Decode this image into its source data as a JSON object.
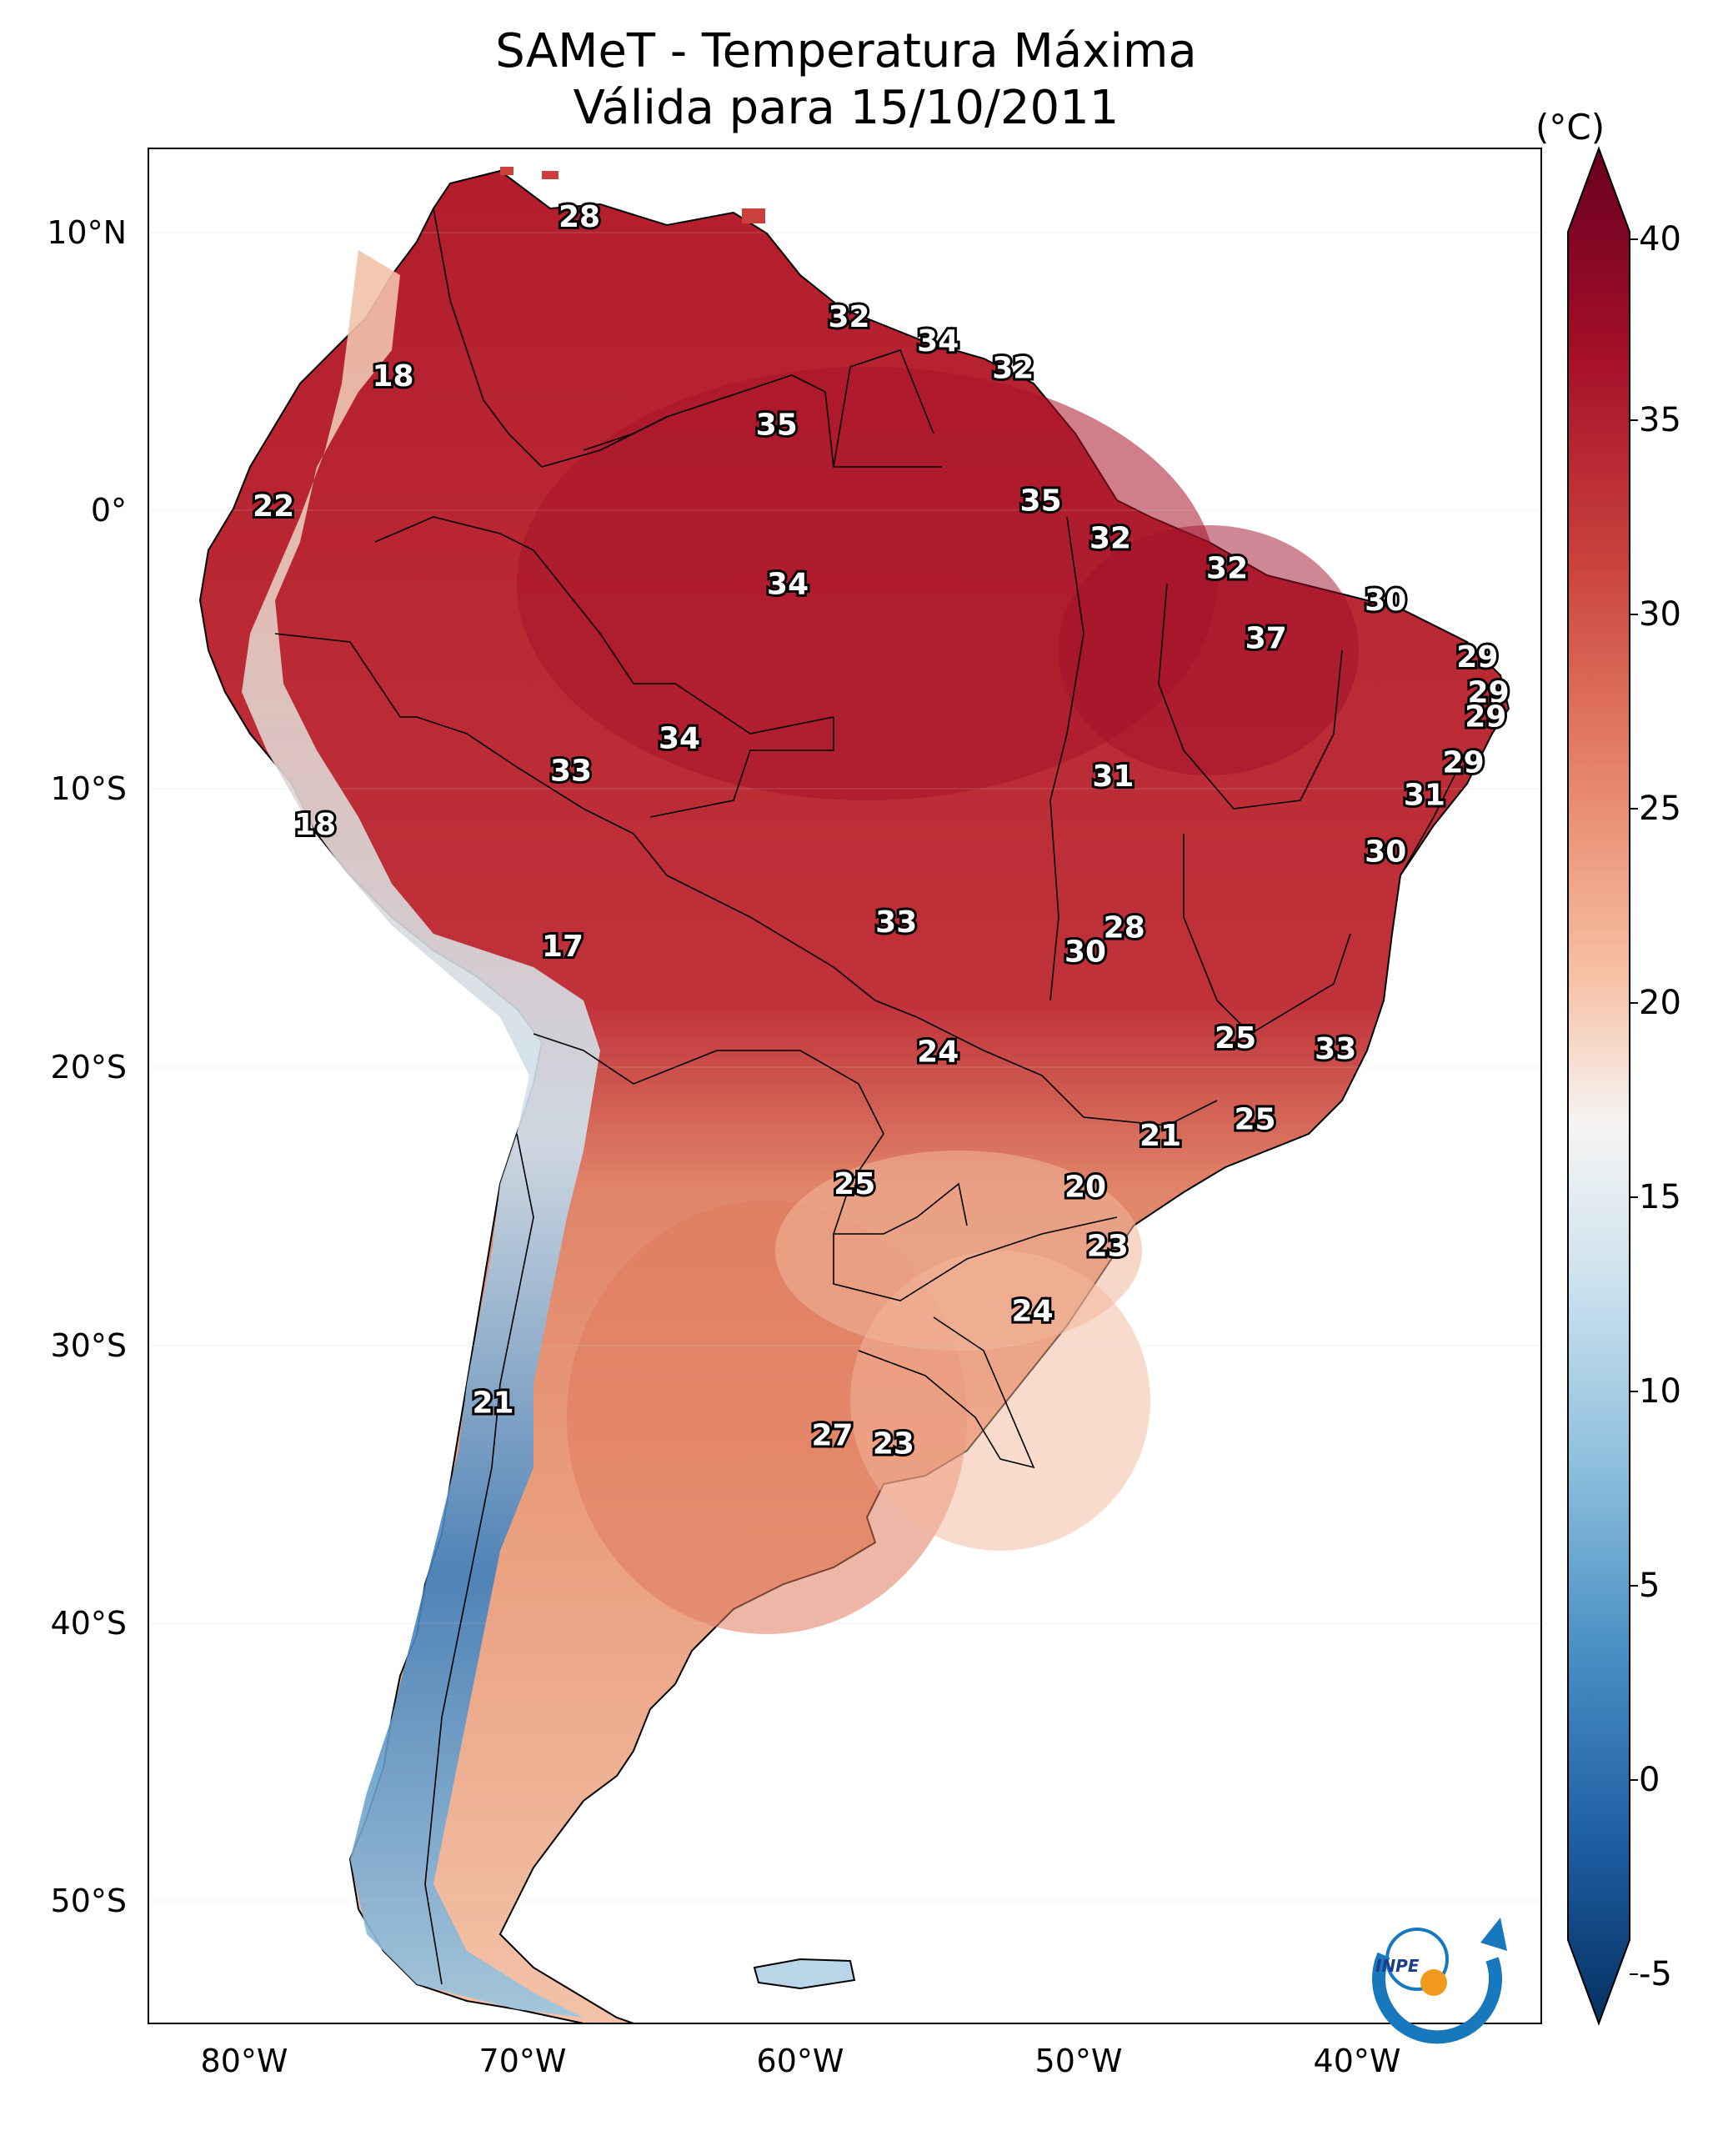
{
  "title": {
    "line1": "SAMeT - Temperatura Máxima",
    "line2": "Válida para 15/10/2011"
  },
  "axes": {
    "lat_ticks": [
      "10°N",
      "0°",
      "10°S",
      "20°S",
      "30°S",
      "40°S",
      "50°S"
    ],
    "lon_ticks": [
      "80°W",
      "70°W",
      "60°W",
      "50°W",
      "40°W"
    ]
  },
  "colorbar": {
    "unit": "(°C)",
    "ticks": [
      "40",
      "35",
      "30",
      "25",
      "20",
      "15",
      "10",
      "5",
      "0",
      "-5"
    ],
    "min": -5,
    "max": 40,
    "colors": [
      "#083a78",
      "#2c6fb0",
      "#6aa8d0",
      "#b9d9ea",
      "#f5f5f5",
      "#f7c3a6",
      "#e5815f",
      "#c5363a",
      "#8e0c1f",
      "#67001f"
    ]
  },
  "station_labels": [
    {
      "text": "28",
      "lat": 10.5,
      "lon": -67.5
    },
    {
      "text": "32",
      "lat": 6.8,
      "lon": -57.8
    },
    {
      "text": "34",
      "lat": 5.9,
      "lon": -54.6
    },
    {
      "text": "32",
      "lat": 4.9,
      "lon": -51.9
    },
    {
      "text": "18",
      "lat": 4.6,
      "lon": -74.2
    },
    {
      "text": "35",
      "lat": 2.8,
      "lon": -60.4
    },
    {
      "text": "22",
      "lat": -0.2,
      "lon": -78.5
    },
    {
      "text": "35",
      "lat": 0.0,
      "lon": -50.9
    },
    {
      "text": "32",
      "lat": -1.4,
      "lon": -48.4
    },
    {
      "text": "32",
      "lat": -2.5,
      "lon": -44.2
    },
    {
      "text": "34",
      "lat": -3.1,
      "lon": -60.0
    },
    {
      "text": "30",
      "lat": -3.7,
      "lon": -38.5
    },
    {
      "text": "37",
      "lat": -5.1,
      "lon": -42.8
    },
    {
      "text": "29",
      "lat": -5.8,
      "lon": -35.2
    },
    {
      "text": "29",
      "lat": -7.1,
      "lon": -34.8
    },
    {
      "text": "29",
      "lat": -8.0,
      "lon": -34.9
    },
    {
      "text": "34",
      "lat": -8.8,
      "lon": -63.9
    },
    {
      "text": "29",
      "lat": -9.7,
      "lon": -35.7
    },
    {
      "text": "33",
      "lat": -10.0,
      "lon": -67.8
    },
    {
      "text": "31",
      "lat": -10.2,
      "lon": -48.3
    },
    {
      "text": "31",
      "lat": -10.9,
      "lon": -37.1
    },
    {
      "text": "18",
      "lat": -12.0,
      "lon": -77.0
    },
    {
      "text": "30",
      "lat": -13.0,
      "lon": -38.5
    },
    {
      "text": "33",
      "lat": -15.6,
      "lon": -56.1
    },
    {
      "text": "28",
      "lat": -15.8,
      "lon": -47.9
    },
    {
      "text": "30",
      "lat": -16.7,
      "lon": -49.3
    },
    {
      "text": "17",
      "lat": -16.5,
      "lon": -68.1
    },
    {
      "text": "25",
      "lat": -19.9,
      "lon": -43.9
    },
    {
      "text": "24",
      "lat": -20.4,
      "lon": -54.6
    },
    {
      "text": "33",
      "lat": -20.3,
      "lon": -40.3
    },
    {
      "text": "25",
      "lat": -22.9,
      "lon": -43.2
    },
    {
      "text": "21",
      "lat": -23.5,
      "lon": -46.6
    },
    {
      "text": "25",
      "lat": -25.3,
      "lon": -57.6
    },
    {
      "text": "20",
      "lat": -25.4,
      "lon": -49.3
    },
    {
      "text": "23",
      "lat": -27.6,
      "lon": -48.5
    },
    {
      "text": "24",
      "lat": -30.0,
      "lon": -51.2
    },
    {
      "text": "21",
      "lat": -33.4,
      "lon": -70.6
    },
    {
      "text": "27",
      "lat": -34.6,
      "lon": -58.4
    },
    {
      "text": "23",
      "lat": -34.9,
      "lon": -56.2
    }
  ],
  "logo": {
    "text": "INPE"
  }
}
